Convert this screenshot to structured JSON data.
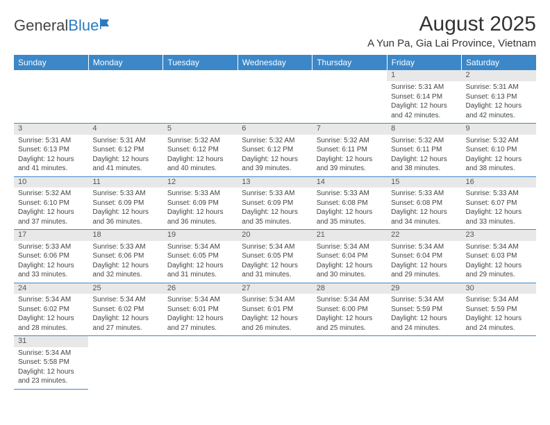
{
  "logo": {
    "text1": "General",
    "text2": "Blue"
  },
  "title": "August 2025",
  "location": "A Yun Pa, Gia Lai Province, Vietnam",
  "colors": {
    "header_bg": "#3b87c8",
    "header_text": "#ffffff",
    "daynum_bg": "#e8e8e8",
    "cell_border": "#3b87c8",
    "body_text": "#444444",
    "logo_gray": "#444444",
    "logo_blue": "#2b7bbf"
  },
  "weekdays": [
    "Sunday",
    "Monday",
    "Tuesday",
    "Wednesday",
    "Thursday",
    "Friday",
    "Saturday"
  ],
  "weeks": [
    [
      null,
      null,
      null,
      null,
      null,
      {
        "n": "1",
        "sr": "5:31 AM",
        "ss": "6:14 PM",
        "dl": "12 hours and 42 minutes."
      },
      {
        "n": "2",
        "sr": "5:31 AM",
        "ss": "6:13 PM",
        "dl": "12 hours and 42 minutes."
      }
    ],
    [
      {
        "n": "3",
        "sr": "5:31 AM",
        "ss": "6:13 PM",
        "dl": "12 hours and 41 minutes."
      },
      {
        "n": "4",
        "sr": "5:31 AM",
        "ss": "6:12 PM",
        "dl": "12 hours and 41 minutes."
      },
      {
        "n": "5",
        "sr": "5:32 AM",
        "ss": "6:12 PM",
        "dl": "12 hours and 40 minutes."
      },
      {
        "n": "6",
        "sr": "5:32 AM",
        "ss": "6:12 PM",
        "dl": "12 hours and 39 minutes."
      },
      {
        "n": "7",
        "sr": "5:32 AM",
        "ss": "6:11 PM",
        "dl": "12 hours and 39 minutes."
      },
      {
        "n": "8",
        "sr": "5:32 AM",
        "ss": "6:11 PM",
        "dl": "12 hours and 38 minutes."
      },
      {
        "n": "9",
        "sr": "5:32 AM",
        "ss": "6:10 PM",
        "dl": "12 hours and 38 minutes."
      }
    ],
    [
      {
        "n": "10",
        "sr": "5:32 AM",
        "ss": "6:10 PM",
        "dl": "12 hours and 37 minutes."
      },
      {
        "n": "11",
        "sr": "5:33 AM",
        "ss": "6:09 PM",
        "dl": "12 hours and 36 minutes."
      },
      {
        "n": "12",
        "sr": "5:33 AM",
        "ss": "6:09 PM",
        "dl": "12 hours and 36 minutes."
      },
      {
        "n": "13",
        "sr": "5:33 AM",
        "ss": "6:09 PM",
        "dl": "12 hours and 35 minutes."
      },
      {
        "n": "14",
        "sr": "5:33 AM",
        "ss": "6:08 PM",
        "dl": "12 hours and 35 minutes."
      },
      {
        "n": "15",
        "sr": "5:33 AM",
        "ss": "6:08 PM",
        "dl": "12 hours and 34 minutes."
      },
      {
        "n": "16",
        "sr": "5:33 AM",
        "ss": "6:07 PM",
        "dl": "12 hours and 33 minutes."
      }
    ],
    [
      {
        "n": "17",
        "sr": "5:33 AM",
        "ss": "6:06 PM",
        "dl": "12 hours and 33 minutes."
      },
      {
        "n": "18",
        "sr": "5:33 AM",
        "ss": "6:06 PM",
        "dl": "12 hours and 32 minutes."
      },
      {
        "n": "19",
        "sr": "5:34 AM",
        "ss": "6:05 PM",
        "dl": "12 hours and 31 minutes."
      },
      {
        "n": "20",
        "sr": "5:34 AM",
        "ss": "6:05 PM",
        "dl": "12 hours and 31 minutes."
      },
      {
        "n": "21",
        "sr": "5:34 AM",
        "ss": "6:04 PM",
        "dl": "12 hours and 30 minutes."
      },
      {
        "n": "22",
        "sr": "5:34 AM",
        "ss": "6:04 PM",
        "dl": "12 hours and 29 minutes."
      },
      {
        "n": "23",
        "sr": "5:34 AM",
        "ss": "6:03 PM",
        "dl": "12 hours and 29 minutes."
      }
    ],
    [
      {
        "n": "24",
        "sr": "5:34 AM",
        "ss": "6:02 PM",
        "dl": "12 hours and 28 minutes."
      },
      {
        "n": "25",
        "sr": "5:34 AM",
        "ss": "6:02 PM",
        "dl": "12 hours and 27 minutes."
      },
      {
        "n": "26",
        "sr": "5:34 AM",
        "ss": "6:01 PM",
        "dl": "12 hours and 27 minutes."
      },
      {
        "n": "27",
        "sr": "5:34 AM",
        "ss": "6:01 PM",
        "dl": "12 hours and 26 minutes."
      },
      {
        "n": "28",
        "sr": "5:34 AM",
        "ss": "6:00 PM",
        "dl": "12 hours and 25 minutes."
      },
      {
        "n": "29",
        "sr": "5:34 AM",
        "ss": "5:59 PM",
        "dl": "12 hours and 24 minutes."
      },
      {
        "n": "30",
        "sr": "5:34 AM",
        "ss": "5:59 PM",
        "dl": "12 hours and 24 minutes."
      }
    ],
    [
      {
        "n": "31",
        "sr": "5:34 AM",
        "ss": "5:58 PM",
        "dl": "12 hours and 23 minutes."
      },
      null,
      null,
      null,
      null,
      null,
      null
    ]
  ],
  "labels": {
    "sunrise": "Sunrise:",
    "sunset": "Sunset:",
    "daylight": "Daylight:"
  }
}
